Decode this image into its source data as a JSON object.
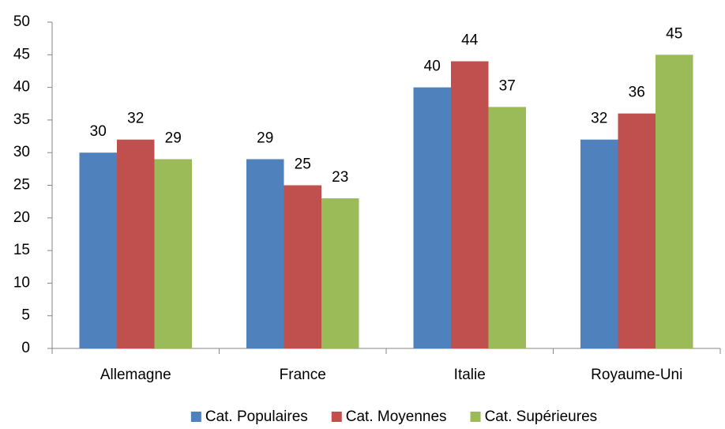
{
  "chart_data": {
    "type": "bar",
    "categories": [
      "Allemagne",
      "France",
      "Italie",
      "Royaume-Uni"
    ],
    "series": [
      {
        "name": "Cat. Populaires",
        "color": "#4f81bd",
        "values": [
          30,
          29,
          40,
          32
        ]
      },
      {
        "name": "Cat. Moyennes",
        "color": "#c0504d",
        "values": [
          32,
          25,
          44,
          36
        ]
      },
      {
        "name": "Cat. Supérieures",
        "color": "#9bbb59",
        "values": [
          29,
          23,
          37,
          45
        ]
      }
    ],
    "ylim": [
      0,
      50
    ],
    "yticks": [
      0,
      5,
      10,
      15,
      20,
      25,
      30,
      35,
      40,
      45,
      50
    ],
    "grid": false,
    "legend": "bottom"
  }
}
